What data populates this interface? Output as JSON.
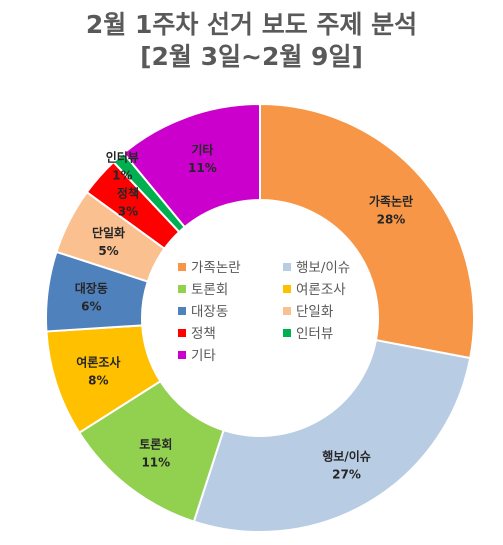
{
  "chart_data": {
    "type": "pie",
    "donut": true,
    "title_line1": "2월 1주차 선거 보도 주제 분석",
    "title_line2": "[2월 3일~2월 9일]",
    "categories": [
      "가족논란",
      "행보/이슈",
      "토론회",
      "여론조사",
      "대장동",
      "단일화",
      "정책",
      "인터뷰",
      "기타"
    ],
    "values": [
      28,
      27,
      11,
      8,
      6,
      5,
      3,
      1,
      11
    ],
    "value_labels": [
      "28%",
      "27%",
      "11%",
      "8%",
      "6%",
      "5%",
      "3%",
      "1%",
      "11%"
    ],
    "colors": [
      "#F79646",
      "#B8CCE4",
      "#92D050",
      "#FFC000",
      "#4F81BD",
      "#FAC090",
      "#FF0000",
      "#00B050",
      "#CC00CC"
    ],
    "legend_position": "center"
  }
}
